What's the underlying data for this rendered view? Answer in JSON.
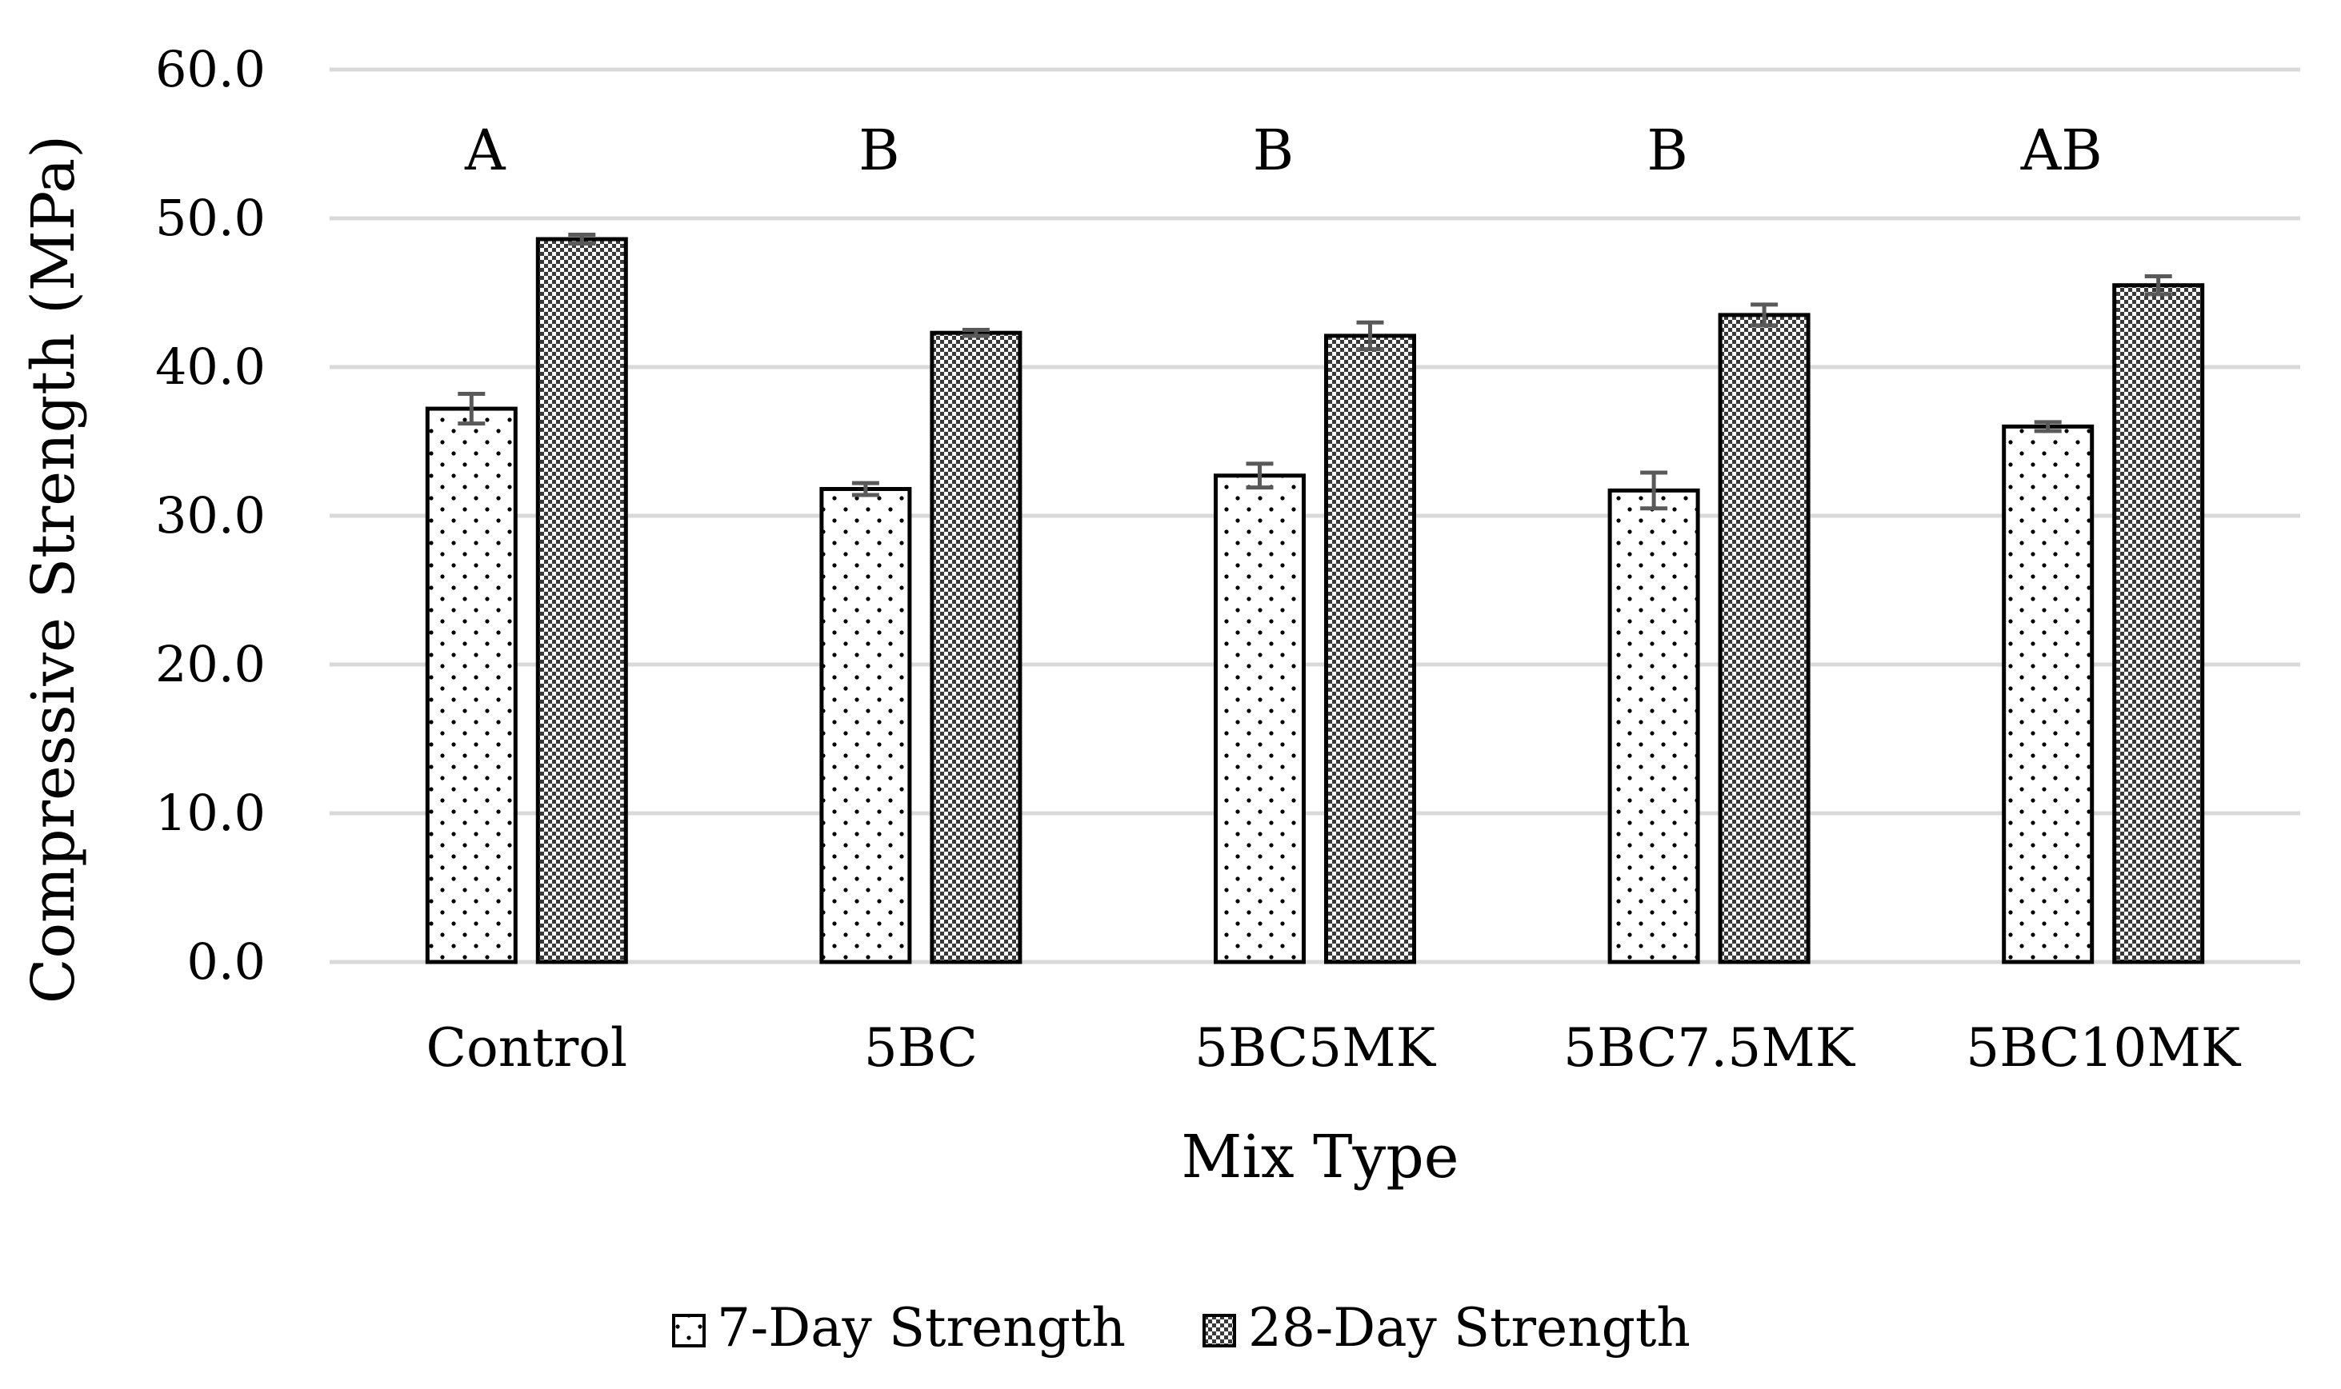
{
  "chart_data": {
    "type": "bar",
    "title": "",
    "xlabel": "Mix Type",
    "ylabel": "Compressive Strength (MPa)",
    "ylim": [
      0,
      60
    ],
    "yticks": [
      "0.0",
      "10.0",
      "20.0",
      "30.0",
      "40.0",
      "50.0",
      "60.0"
    ],
    "categories": [
      "Control",
      "5BC",
      "5BC5MK",
      "5BC7.5MK",
      "5BC10MK"
    ],
    "group_letters": [
      "A",
      "B",
      "B",
      "B",
      "AB"
    ],
    "series": [
      {
        "name": "7-Day Strength",
        "pattern": "dots",
        "values": [
          37.2,
          31.8,
          32.7,
          31.7,
          36.0
        ],
        "errors": [
          1.0,
          0.4,
          0.8,
          1.2,
          0.3
        ]
      },
      {
        "name": "28-Day Strength",
        "pattern": "checker",
        "values": [
          48.6,
          42.3,
          42.1,
          43.5,
          45.5
        ],
        "errors": [
          0.3,
          0.2,
          0.9,
          0.7,
          0.6
        ]
      }
    ],
    "grid": true,
    "legend_position": "bottom"
  },
  "colors": {
    "grid": "#d9d9d9",
    "bar_border": "#000000",
    "error_bar": "#595959",
    "background": "#ffffff"
  }
}
